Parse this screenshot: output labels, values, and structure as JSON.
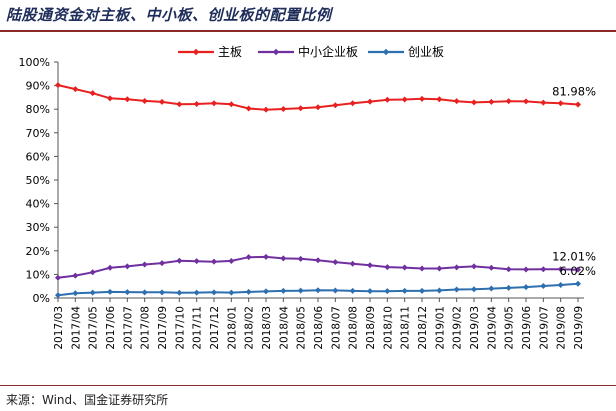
{
  "title": "陆股通资金对主板、中小板、创业板的配置比例",
  "source": "来源：Wind、国金证券研究所",
  "colors": {
    "title": "#1f2d5a",
    "rule": "#8c2a2a"
  },
  "chart_data": {
    "type": "line",
    "ylim": [
      0,
      100
    ],
    "yticks": [
      "0%",
      "10%",
      "20%",
      "30%",
      "40%",
      "50%",
      "60%",
      "70%",
      "80%",
      "90%",
      "100%"
    ],
    "legend_position": "top",
    "x_labels": [
      "2017/03",
      "2017/04",
      "2017/05",
      "2017/06",
      "2017/07",
      "2017/08",
      "2017/09",
      "2017/10",
      "2017/11",
      "2017/12",
      "2018/01",
      "2018/02",
      "2018/03",
      "2018/04",
      "2018/05",
      "2018/06",
      "2018/07",
      "2018/08",
      "2018/09",
      "2018/10",
      "2018/11",
      "2018/12",
      "2019/01",
      "2019/02",
      "2019/03",
      "2019/04",
      "2019/05",
      "2019/06",
      "2019/07",
      "2019/08",
      "2019/09"
    ],
    "series": [
      {
        "name": "主板",
        "color": "#e8201f",
        "end_label": "81.98%",
        "values": [
          90.2,
          88.5,
          86.8,
          84.6,
          84.2,
          83.5,
          83.1,
          82.1,
          82.2,
          82.5,
          82.1,
          80.3,
          79.8,
          80.1,
          80.4,
          80.8,
          81.7,
          82.5,
          83.2,
          84.0,
          84.1,
          84.4,
          84.2,
          83.4,
          82.9,
          83.1,
          83.4,
          83.3,
          82.8,
          82.5,
          81.98
        ]
      },
      {
        "name": "中小企业板",
        "color": "#7030a0",
        "end_label": "12.01%",
        "values": [
          8.6,
          9.5,
          10.9,
          12.8,
          13.4,
          14.2,
          14.8,
          15.8,
          15.6,
          15.4,
          15.7,
          17.3,
          17.4,
          16.8,
          16.6,
          16.0,
          15.2,
          14.5,
          13.9,
          13.1,
          12.9,
          12.5,
          12.5,
          13.0,
          13.4,
          12.8,
          12.2,
          12.1,
          12.2,
          12.2,
          12.01
        ]
      },
      {
        "name": "创业板",
        "color": "#2e6fb0",
        "end_label": "6.02%",
        "values": [
          1.2,
          2.0,
          2.3,
          2.6,
          2.5,
          2.4,
          2.4,
          2.2,
          2.3,
          2.4,
          2.3,
          2.6,
          2.8,
          3.0,
          3.1,
          3.3,
          3.2,
          3.0,
          2.9,
          2.9,
          3.0,
          3.0,
          3.2,
          3.6,
          3.7,
          4.0,
          4.3,
          4.6,
          5.1,
          5.5,
          6.02
        ]
      }
    ]
  }
}
